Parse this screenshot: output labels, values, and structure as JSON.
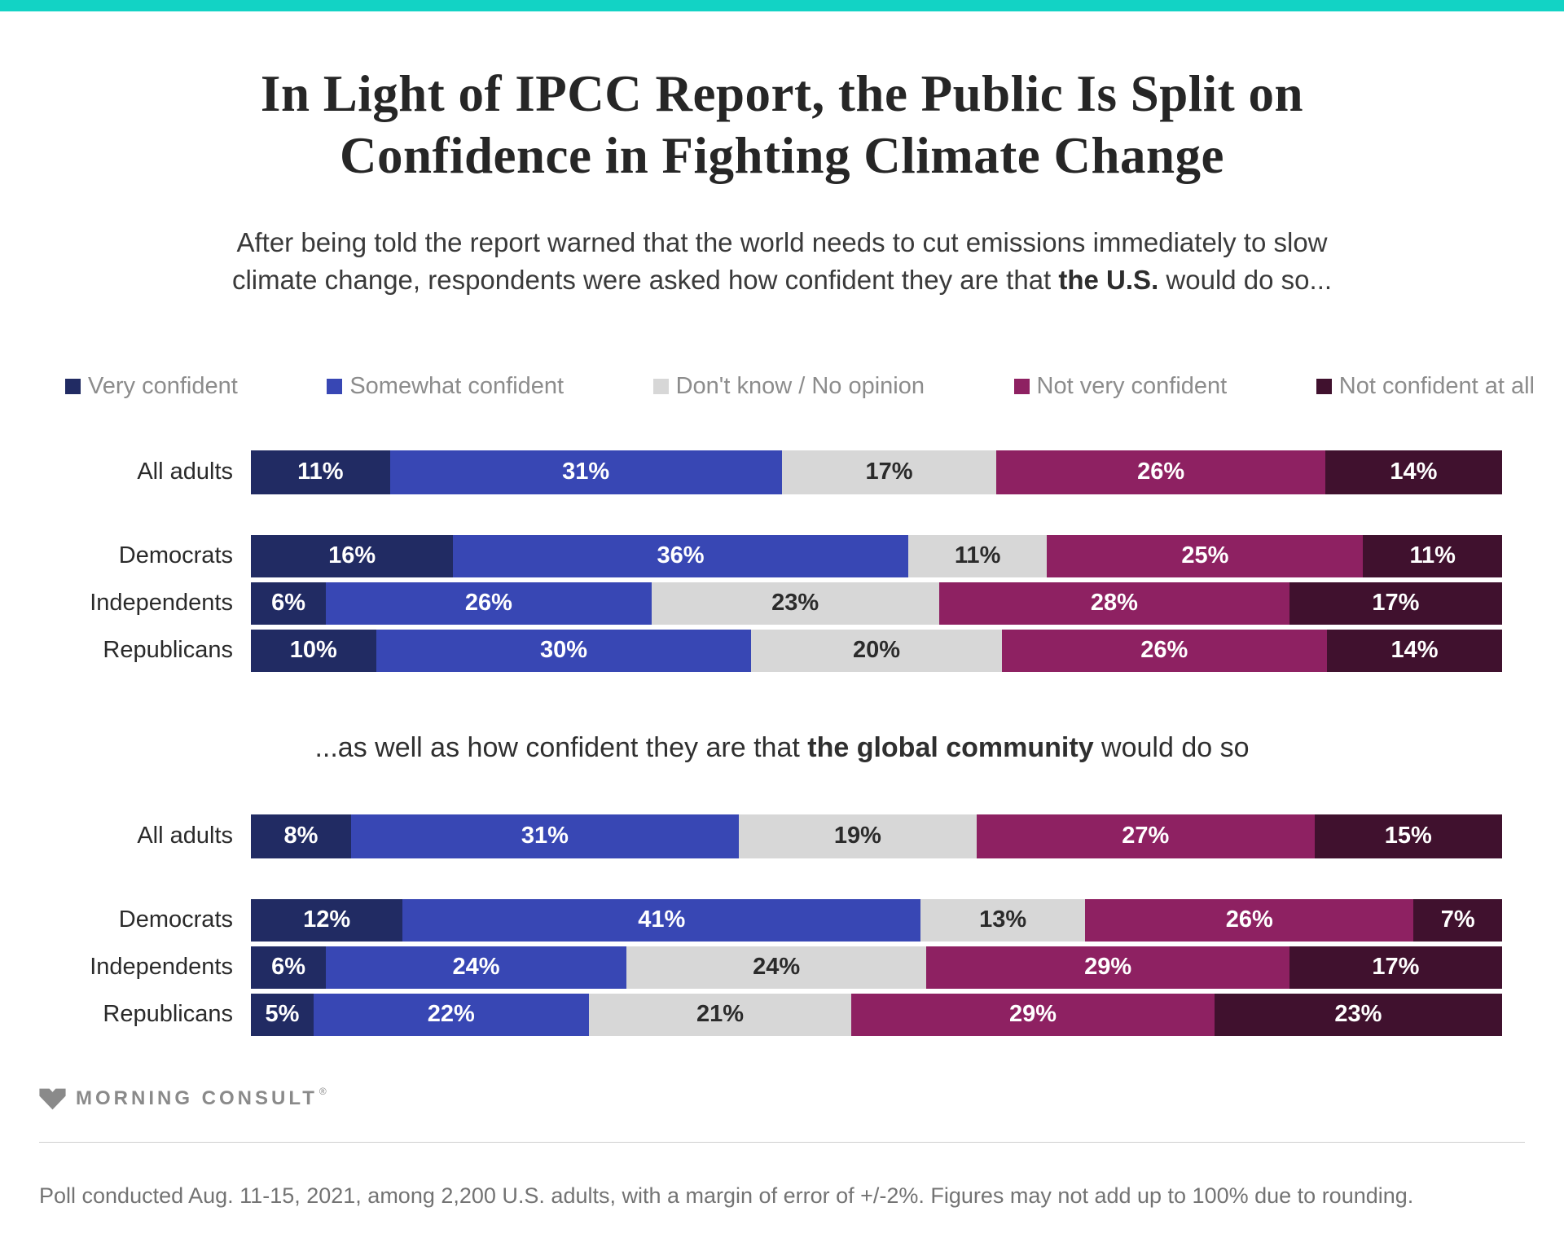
{
  "accent_color": "#12d3c5",
  "header": {
    "title_line1": "In Light of IPCC Report, the Public Is Split on",
    "title_line2": "Confidence in Fighting Climate Change",
    "subtitle_line1": "After being told the report warned that the world needs to cut emissions immediately to slow",
    "subtitle_line2_before": "climate change, respondents were asked how confident they are that ",
    "subtitle_line2_bold": "the U.S.",
    "subtitle_line2_after": " would do so..."
  },
  "global_subtitle": {
    "before": "...as well as how confident they are that ",
    "bold": "the global community",
    "after": " would do so"
  },
  "legend": {
    "items": [
      {
        "label": "Very confident",
        "color": "#212b63",
        "value_label_dark": false
      },
      {
        "label": "Somewhat confident",
        "color": "#3847b4",
        "value_label_dark": false
      },
      {
        "label": "Don't know / No opinion",
        "color": "#d7d7d7",
        "value_label_dark": true
      },
      {
        "label": "Not very confident",
        "color": "#8e2162",
        "value_label_dark": false
      },
      {
        "label": "Not confident at all",
        "color": "#40112e",
        "value_label_dark": false
      }
    ]
  },
  "chart_data": [
    {
      "type": "bar",
      "stacked": true,
      "orientation": "horizontal",
      "unit": "%",
      "xlim": [
        0,
        100
      ],
      "legend_position": "top",
      "title": "After being told the report warned that the world needs to cut emissions immediately to slow climate change, respondents were asked how confident they are that the U.S. would do so...",
      "categories": [
        "All adults",
        "Democrats",
        "Independents",
        "Republicans"
      ],
      "series": [
        {
          "name": "Very confident",
          "values": [
            11,
            16,
            6,
            10
          ]
        },
        {
          "name": "Somewhat confident",
          "values": [
            31,
            36,
            26,
            30
          ]
        },
        {
          "name": "Don't know / No opinion",
          "values": [
            17,
            11,
            23,
            20
          ]
        },
        {
          "name": "Not very confident",
          "values": [
            26,
            25,
            28,
            26
          ]
        },
        {
          "name": "Not confident at all",
          "values": [
            14,
            11,
            17,
            14
          ]
        }
      ]
    },
    {
      "type": "bar",
      "stacked": true,
      "orientation": "horizontal",
      "unit": "%",
      "xlim": [
        0,
        100
      ],
      "legend_position": "top",
      "title": "...as well as how confident they are that the global community would do so",
      "categories": [
        "All adults",
        "Democrats",
        "Independents",
        "Republicans"
      ],
      "series": [
        {
          "name": "Very confident",
          "values": [
            8,
            12,
            6,
            5
          ]
        },
        {
          "name": "Somewhat confident",
          "values": [
            31,
            41,
            24,
            22
          ]
        },
        {
          "name": "Don't know / No opinion",
          "values": [
            19,
            13,
            24,
            21
          ]
        },
        {
          "name": "Not very confident",
          "values": [
            27,
            26,
            29,
            29
          ]
        },
        {
          "name": "Not confident at all",
          "values": [
            15,
            7,
            17,
            23
          ]
        }
      ]
    }
  ],
  "footer": {
    "brand": "MORNING CONSULT",
    "reg_mark": "®",
    "note": "Poll conducted Aug. 11-15, 2021, among 2,200 U.S. adults, with a margin of error of +/-2%. Figures may not add up to 100% due to rounding."
  }
}
